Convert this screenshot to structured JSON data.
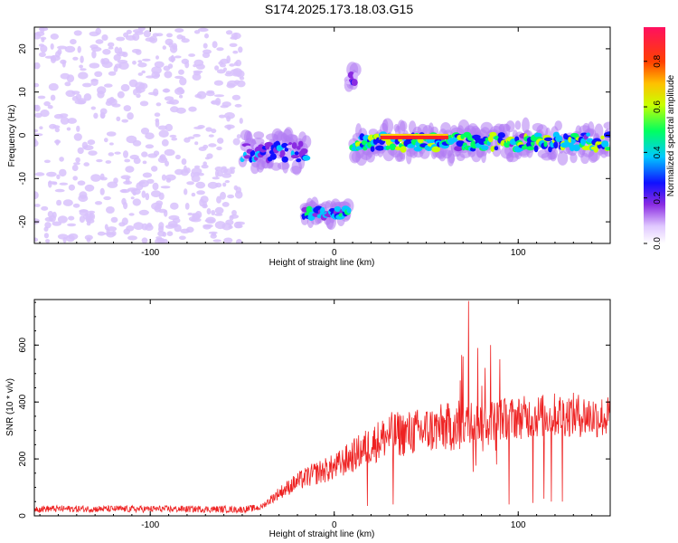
{
  "title": "S174.2025.173.18.03.G15",
  "colors": {
    "snr_line": "#ee2222",
    "axis": "#000000",
    "background": "#ffffff"
  },
  "chart_data": [
    {
      "type": "heatmap",
      "title": "S174.2025.173.18.03.G15",
      "xlabel": "Height of straight line (km)",
      "ylabel": "Frequency (Hz)",
      "xlim": [
        -163,
        150
      ],
      "ylim": [
        -25,
        25
      ],
      "x_ticks": [
        -100,
        0,
        100
      ],
      "y_ticks": [
        -20,
        -10,
        0,
        10,
        20
      ],
      "colorbar": {
        "label": "Normalized spectral amplitude",
        "range": [
          0,
          0.95
        ],
        "ticks": [
          "0.0",
          "0.2",
          "0.4",
          "0.6",
          "0.8"
        ],
        "colormap": "rainbow"
      },
      "features": [
        {
          "x_range": [
            -163,
            -50
          ],
          "freq_range": [
            -25,
            25
          ],
          "peak_amplitude": 0.15,
          "kind": "noise"
        },
        {
          "x_range": [
            -50,
            -15
          ],
          "freq_range": [
            -8,
            0
          ],
          "peak_amplitude": 0.55,
          "kind": "track"
        },
        {
          "x_range": [
            -17,
            8
          ],
          "freq_range": [
            -20,
            -16
          ],
          "peak_amplitude": 0.75,
          "kind": "track"
        },
        {
          "x_range": [
            7,
            12
          ],
          "freq_range": [
            11,
            15
          ],
          "peak_amplitude": 0.45,
          "kind": "blob"
        },
        {
          "x_range": [
            10,
            150
          ],
          "freq_range": [
            -5,
            2
          ],
          "peak_amplitude": 0.95,
          "kind": "track"
        }
      ]
    },
    {
      "type": "line",
      "xlabel": "Height of straight line (km)",
      "ylabel": "SNR (10 * v/v)",
      "xlim": [
        -163,
        150
      ],
      "ylim": [
        0,
        760
      ],
      "x_ticks": [
        -100,
        0,
        100
      ],
      "y_ticks": [
        0,
        200,
        400,
        600
      ],
      "series": [
        {
          "trend_x": [
            -163,
            -120,
            -80,
            -60,
            -50,
            -40,
            -30,
            -20,
            -10,
            0,
            10,
            20,
            30,
            40,
            50,
            60,
            70,
            80,
            90,
            100,
            110,
            120,
            130,
            140,
            150
          ],
          "trend_y": [
            25,
            24,
            24,
            23,
            22,
            30,
            80,
            120,
            150,
            170,
            210,
            250,
            285,
            290,
            300,
            310,
            320,
            330,
            340,
            345,
            350,
            355,
            355,
            350,
            345
          ],
          "spikes": [
            {
              "x": 73,
              "y": 755
            },
            {
              "x": 78,
              "y": 590
            },
            {
              "x": 85,
              "y": 600
            },
            {
              "x": 70,
              "y": 560
            },
            {
              "x": 90,
              "y": 550
            },
            {
              "x": 82,
              "y": 520
            },
            {
              "x": 18,
              "y": 35
            },
            {
              "x": 32,
              "y": 40
            },
            {
              "x": 95,
              "y": 40
            },
            {
              "x": 108,
              "y": 45
            },
            {
              "x": 118,
              "y": 50
            },
            {
              "x": 124,
              "y": 50
            },
            {
              "x": 114,
              "y": 60
            }
          ]
        }
      ]
    }
  ]
}
